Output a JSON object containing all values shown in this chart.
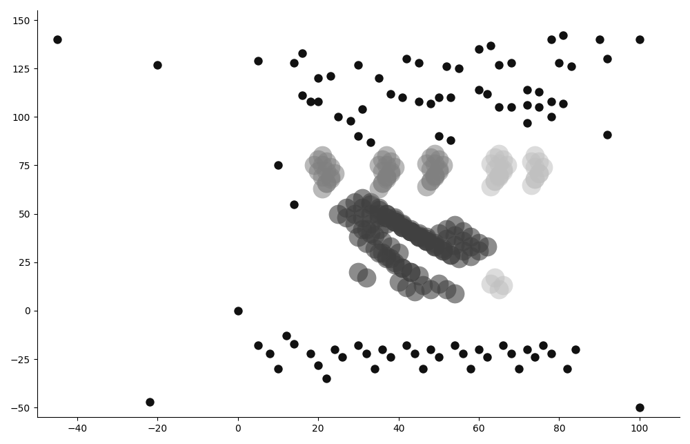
{
  "xlim": [
    -50,
    110
  ],
  "ylim": [
    -55,
    155
  ],
  "xticks": [
    -40,
    -20,
    0,
    20,
    40,
    60,
    80,
    100
  ],
  "yticks": [
    -50,
    -25,
    0,
    25,
    50,
    75,
    100,
    125,
    150
  ],
  "background_color": "white",
  "figsize": [
    10.0,
    6.43
  ],
  "dpi": 100,
  "cluster1_color": "#404040",
  "cluster1_alpha": 0.6,
  "cluster1_size": 400,
  "cluster2_color": "#808080",
  "cluster2_alpha": 0.55,
  "cluster2_size": 400,
  "cluster3_color": "#c0c0c0",
  "cluster3_alpha": 0.55,
  "cluster3_size": 400,
  "noise_color": "#111111",
  "noise_size": 80,
  "noise_alpha": 1.0,
  "cluster1_points": [
    [
      25,
      50
    ],
    [
      27,
      48
    ],
    [
      29,
      45
    ],
    [
      31,
      42
    ],
    [
      33,
      40
    ],
    [
      27,
      53
    ],
    [
      29,
      50
    ],
    [
      31,
      48
    ],
    [
      33,
      45
    ],
    [
      35,
      42
    ],
    [
      29,
      56
    ],
    [
      31,
      53
    ],
    [
      33,
      50
    ],
    [
      35,
      48
    ],
    [
      37,
      45
    ],
    [
      31,
      58
    ],
    [
      33,
      56
    ],
    [
      35,
      53
    ],
    [
      37,
      50
    ],
    [
      39,
      48
    ],
    [
      33,
      55
    ],
    [
      35,
      52
    ],
    [
      37,
      50
    ],
    [
      39,
      47
    ],
    [
      41,
      45
    ],
    [
      35,
      50
    ],
    [
      37,
      48
    ],
    [
      39,
      46
    ],
    [
      41,
      43
    ],
    [
      43,
      41
    ],
    [
      37,
      48
    ],
    [
      39,
      46
    ],
    [
      41,
      43
    ],
    [
      43,
      41
    ],
    [
      45,
      38
    ],
    [
      39,
      46
    ],
    [
      41,
      43
    ],
    [
      43,
      41
    ],
    [
      45,
      38
    ],
    [
      47,
      36
    ],
    [
      41,
      44
    ],
    [
      43,
      41
    ],
    [
      45,
      38
    ],
    [
      47,
      36
    ],
    [
      49,
      33
    ],
    [
      43,
      42
    ],
    [
      45,
      39
    ],
    [
      47,
      36
    ],
    [
      49,
      33
    ],
    [
      51,
      31
    ],
    [
      45,
      40
    ],
    [
      47,
      37
    ],
    [
      49,
      34
    ],
    [
      51,
      31
    ],
    [
      53,
      29
    ],
    [
      47,
      38
    ],
    [
      49,
      35
    ],
    [
      51,
      32
    ],
    [
      53,
      29
    ],
    [
      55,
      27
    ],
    [
      35,
      30
    ],
    [
      37,
      27
    ],
    [
      39,
      24
    ],
    [
      41,
      22
    ],
    [
      43,
      20
    ],
    [
      37,
      28
    ],
    [
      39,
      25
    ],
    [
      41,
      22
    ],
    [
      43,
      20
    ],
    [
      45,
      18
    ],
    [
      30,
      38
    ],
    [
      32,
      35
    ],
    [
      34,
      32
    ],
    [
      36,
      30
    ],
    [
      38,
      27
    ],
    [
      32,
      42
    ],
    [
      34,
      39
    ],
    [
      36,
      36
    ],
    [
      38,
      33
    ],
    [
      40,
      30
    ],
    [
      50,
      40
    ],
    [
      52,
      37
    ],
    [
      54,
      34
    ],
    [
      56,
      31
    ],
    [
      58,
      28
    ],
    [
      52,
      42
    ],
    [
      54,
      39
    ],
    [
      56,
      36
    ],
    [
      58,
      33
    ],
    [
      60,
      31
    ],
    [
      54,
      44
    ],
    [
      56,
      41
    ],
    [
      58,
      38
    ],
    [
      60,
      35
    ],
    [
      62,
      33
    ],
    [
      40,
      15
    ],
    [
      42,
      12
    ],
    [
      44,
      10
    ],
    [
      46,
      13
    ],
    [
      48,
      11
    ],
    [
      50,
      14
    ],
    [
      52,
      11
    ],
    [
      54,
      9
    ],
    [
      30,
      20
    ],
    [
      32,
      17
    ]
  ],
  "cluster2_points": [
    [
      19,
      75
    ],
    [
      20,
      72
    ],
    [
      21,
      69
    ],
    [
      22,
      66
    ],
    [
      21,
      63
    ],
    [
      20,
      78
    ],
    [
      21,
      75
    ],
    [
      22,
      72
    ],
    [
      23,
      69
    ],
    [
      22,
      66
    ],
    [
      21,
      80
    ],
    [
      22,
      77
    ],
    [
      23,
      74
    ],
    [
      24,
      71
    ],
    [
      23,
      68
    ],
    [
      35,
      75
    ],
    [
      36,
      72
    ],
    [
      37,
      69
    ],
    [
      36,
      66
    ],
    [
      35,
      63
    ],
    [
      36,
      78
    ],
    [
      37,
      75
    ],
    [
      38,
      72
    ],
    [
      37,
      69
    ],
    [
      36,
      66
    ],
    [
      37,
      80
    ],
    [
      38,
      77
    ],
    [
      39,
      74
    ],
    [
      38,
      71
    ],
    [
      37,
      68
    ],
    [
      47,
      76
    ],
    [
      48,
      73
    ],
    [
      49,
      70
    ],
    [
      48,
      67
    ],
    [
      47,
      64
    ],
    [
      48,
      79
    ],
    [
      49,
      76
    ],
    [
      50,
      73
    ],
    [
      49,
      70
    ],
    [
      48,
      67
    ],
    [
      49,
      81
    ],
    [
      50,
      78
    ],
    [
      51,
      75
    ],
    [
      50,
      72
    ],
    [
      49,
      69
    ]
  ],
  "cluster3_points": [
    [
      63,
      76
    ],
    [
      64,
      73
    ],
    [
      65,
      70
    ],
    [
      64,
      67
    ],
    [
      63,
      64
    ],
    [
      64,
      79
    ],
    [
      65,
      76
    ],
    [
      66,
      73
    ],
    [
      65,
      70
    ],
    [
      64,
      67
    ],
    [
      65,
      81
    ],
    [
      66,
      78
    ],
    [
      67,
      75
    ],
    [
      66,
      72
    ],
    [
      65,
      69
    ],
    [
      73,
      77
    ],
    [
      74,
      74
    ],
    [
      75,
      71
    ],
    [
      74,
      68
    ],
    [
      73,
      65
    ],
    [
      74,
      80
    ],
    [
      75,
      77
    ],
    [
      76,
      74
    ],
    [
      75,
      71
    ],
    [
      74,
      68
    ],
    [
      63,
      14
    ],
    [
      65,
      11
    ],
    [
      64,
      17
    ],
    [
      66,
      13
    ]
  ],
  "noise_points": [
    [
      -45,
      140
    ],
    [
      -20,
      127
    ],
    [
      5,
      129
    ],
    [
      14,
      128
    ],
    [
      16,
      133
    ],
    [
      20,
      120
    ],
    [
      23,
      121
    ],
    [
      16,
      111
    ],
    [
      18,
      108
    ],
    [
      20,
      108
    ],
    [
      25,
      100
    ],
    [
      28,
      98
    ],
    [
      31,
      104
    ],
    [
      30,
      127
    ],
    [
      35,
      120
    ],
    [
      38,
      112
    ],
    [
      41,
      110
    ],
    [
      30,
      90
    ],
    [
      33,
      87
    ],
    [
      42,
      130
    ],
    [
      45,
      128
    ],
    [
      45,
      108
    ],
    [
      48,
      107
    ],
    [
      52,
      126
    ],
    [
      55,
      125
    ],
    [
      50,
      110
    ],
    [
      53,
      110
    ],
    [
      50,
      90
    ],
    [
      53,
      88
    ],
    [
      60,
      135
    ],
    [
      63,
      137
    ],
    [
      60,
      114
    ],
    [
      62,
      112
    ],
    [
      65,
      127
    ],
    [
      68,
      128
    ],
    [
      65,
      105
    ],
    [
      68,
      105
    ],
    [
      72,
      114
    ],
    [
      75,
      113
    ],
    [
      72,
      106
    ],
    [
      75,
      105
    ],
    [
      72,
      97
    ],
    [
      78,
      140
    ],
    [
      81,
      142
    ],
    [
      80,
      128
    ],
    [
      83,
      126
    ],
    [
      78,
      108
    ],
    [
      81,
      107
    ],
    [
      78,
      100
    ],
    [
      90,
      140
    ],
    [
      92,
      130
    ],
    [
      92,
      91
    ],
    [
      100,
      140
    ],
    [
      0,
      0
    ],
    [
      -22,
      -47
    ],
    [
      5,
      -18
    ],
    [
      8,
      -22
    ],
    [
      10,
      -30
    ],
    [
      12,
      -13
    ],
    [
      14,
      -17
    ],
    [
      18,
      -22
    ],
    [
      20,
      -28
    ],
    [
      22,
      -35
    ],
    [
      24,
      -20
    ],
    [
      26,
      -24
    ],
    [
      30,
      -18
    ],
    [
      32,
      -22
    ],
    [
      34,
      -30
    ],
    [
      36,
      -20
    ],
    [
      38,
      -24
    ],
    [
      42,
      -18
    ],
    [
      44,
      -22
    ],
    [
      46,
      -30
    ],
    [
      48,
      -20
    ],
    [
      50,
      -24
    ],
    [
      54,
      -18
    ],
    [
      56,
      -22
    ],
    [
      58,
      -30
    ],
    [
      60,
      -20
    ],
    [
      62,
      -24
    ],
    [
      66,
      -18
    ],
    [
      68,
      -22
    ],
    [
      70,
      -30
    ],
    [
      72,
      -20
    ],
    [
      74,
      -24
    ],
    [
      76,
      -18
    ],
    [
      78,
      -22
    ],
    [
      82,
      -30
    ],
    [
      84,
      -20
    ],
    [
      100,
      -50
    ],
    [
      10,
      75
    ],
    [
      14,
      55
    ]
  ]
}
